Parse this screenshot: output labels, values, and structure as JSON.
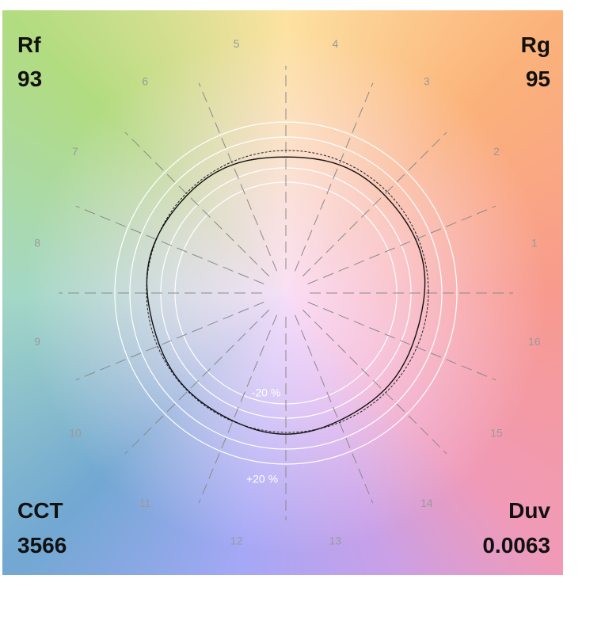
{
  "corners": {
    "top_left": {
      "label": "Rf",
      "value": "93"
    },
    "top_right": {
      "label": "Rg",
      "value": "95"
    },
    "bottom_left": {
      "label": "CCT",
      "value": "3566"
    },
    "bottom_right": {
      "label": "Duv",
      "value": "0.0063"
    }
  },
  "hue_bins": [
    "1",
    "2",
    "3",
    "4",
    "5",
    "6",
    "7",
    "8",
    "9",
    "10",
    "11",
    "12",
    "13",
    "14",
    "15",
    "16"
  ],
  "ring_labels": {
    "inner": "-20 %",
    "outer": "+20 %"
  }
}
